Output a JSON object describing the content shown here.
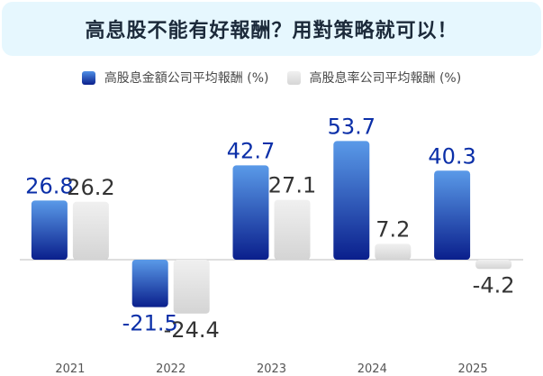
{
  "header": {
    "title": "高息股不能有好報酬？用對策略就可以！"
  },
  "colors": {
    "series1_top": "#5a9ae8",
    "series1_bottom": "#0a1f8c",
    "series2_top": "#f0f0f0",
    "series2_bottom": "#d4d4d4",
    "label1": "#0b2fa8",
    "label2": "#333333",
    "axis": "#bdbdbd"
  },
  "chart_data": {
    "type": "bar",
    "categories": [
      "2021",
      "2022",
      "2023",
      "2024",
      "2025"
    ],
    "series": [
      {
        "name": "高股息金額公司平均報酬 (%)",
        "values": [
          26.8,
          -21.5,
          42.7,
          53.7,
          40.3
        ]
      },
      {
        "name": "高股息率公司平均報酬 (%)",
        "values": [
          26.2,
          -24.4,
          27.1,
          7.2,
          -4.2
        ]
      }
    ],
    "title": "高息股不能有好報酬？用對策略就可以！",
    "xlabel": "",
    "ylabel": "",
    "ylim": [
      -25,
      55
    ],
    "grid": false,
    "legend_position": "top"
  }
}
